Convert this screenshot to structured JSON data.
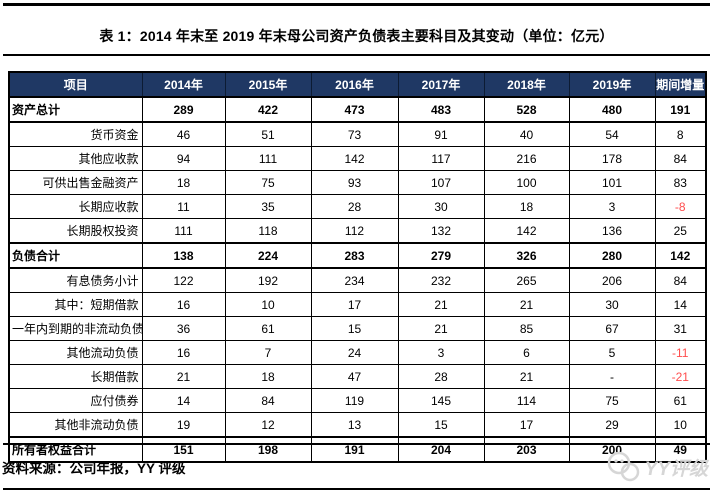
{
  "title": "表 1：2014 年末至 2019 年末母公司资产负债表主要科目及其变动（单位：亿元）",
  "table": {
    "columns": [
      "项目",
      "2014年",
      "2015年",
      "2016年",
      "2017年",
      "2018年",
      "2019年",
      "期间增量"
    ],
    "rows": [
      {
        "label": "资产总计",
        "bold": true,
        "values": [
          "289",
          "422",
          "473",
          "483",
          "528",
          "480",
          "191"
        ]
      },
      {
        "label": "货币资金",
        "bold": false,
        "values": [
          "46",
          "51",
          "73",
          "91",
          "40",
          "54",
          "8"
        ]
      },
      {
        "label": "其他应收款",
        "bold": false,
        "values": [
          "94",
          "111",
          "142",
          "117",
          "216",
          "178",
          "84"
        ]
      },
      {
        "label": "可供出售金融资产",
        "bold": false,
        "values": [
          "18",
          "75",
          "93",
          "107",
          "100",
          "101",
          "83"
        ]
      },
      {
        "label": "长期应收款",
        "bold": false,
        "values": [
          "11",
          "35",
          "28",
          "30",
          "18",
          "3",
          "-8"
        ]
      },
      {
        "label": "长期股权投资",
        "bold": false,
        "values": [
          "111",
          "118",
          "112",
          "132",
          "142",
          "136",
          "25"
        ]
      },
      {
        "label": "负债合计",
        "bold": true,
        "values": [
          "138",
          "224",
          "283",
          "279",
          "326",
          "280",
          "142"
        ]
      },
      {
        "label": "有息债务小计",
        "bold": false,
        "values": [
          "122",
          "192",
          "234",
          "232",
          "265",
          "206",
          "84"
        ]
      },
      {
        "label": "其中：短期借款",
        "bold": false,
        "values": [
          "16",
          "10",
          "17",
          "21",
          "21",
          "30",
          "14"
        ]
      },
      {
        "label": "一年内到期的非流动负债",
        "bold": false,
        "values": [
          "36",
          "61",
          "15",
          "21",
          "85",
          "67",
          "31"
        ]
      },
      {
        "label": "其他流动负债",
        "bold": false,
        "values": [
          "16",
          "7",
          "24",
          "3",
          "6",
          "5",
          "-11"
        ]
      },
      {
        "label": "长期借款",
        "bold": false,
        "values": [
          "21",
          "18",
          "47",
          "28",
          "21",
          "-",
          "-21"
        ]
      },
      {
        "label": "应付债券",
        "bold": false,
        "values": [
          "14",
          "84",
          "119",
          "145",
          "114",
          "75",
          "61"
        ]
      },
      {
        "label": "其他非流动负债",
        "bold": false,
        "values": [
          "19",
          "12",
          "13",
          "15",
          "17",
          "29",
          "10"
        ]
      },
      {
        "label": "所有者权益合计",
        "bold": true,
        "values": [
          "151",
          "198",
          "191",
          "204",
          "203",
          "200",
          "49"
        ]
      }
    ]
  },
  "footer": {
    "source": "资料来源：公司年报，YY 评级",
    "watermark": "YY评级"
  },
  "colors": {
    "header_bg": "#1F3864",
    "negative": "#FF4D4D",
    "watermark": "#D6D6D6"
  }
}
